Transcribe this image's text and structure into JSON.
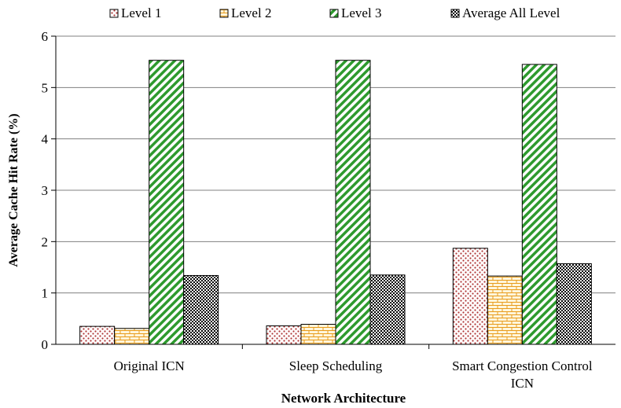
{
  "chart_data": {
    "type": "bar",
    "title": "",
    "xlabel": "Network Architecture",
    "ylabel": "Average Cache Hit Rate (%)",
    "ylim": [
      0,
      6
    ],
    "yticks": [
      0,
      1,
      2,
      3,
      4,
      5,
      6
    ],
    "grid": true,
    "legend_position": "top",
    "categories": [
      [
        "Original ICN"
      ],
      [
        "Sleep Scheduling"
      ],
      [
        "Smart Congestion Control",
        "ICN"
      ]
    ],
    "series": [
      {
        "name": "Level 1",
        "values": [
          0.35,
          0.36,
          1.87
        ],
        "color": "#c0504d",
        "pattern": "dots"
      },
      {
        "name": "Level 2",
        "values": [
          0.31,
          0.39,
          1.33
        ],
        "color": "#f0a020",
        "pattern": "bricks"
      },
      {
        "name": "Level 3",
        "values": [
          5.53,
          5.53,
          5.45
        ],
        "color": "#2e9a2e",
        "pattern": "diagonal-stripes"
      },
      {
        "name": "Average All Level",
        "values": [
          1.34,
          1.35,
          1.57
        ],
        "color": "#000000",
        "pattern": "checker"
      }
    ]
  }
}
